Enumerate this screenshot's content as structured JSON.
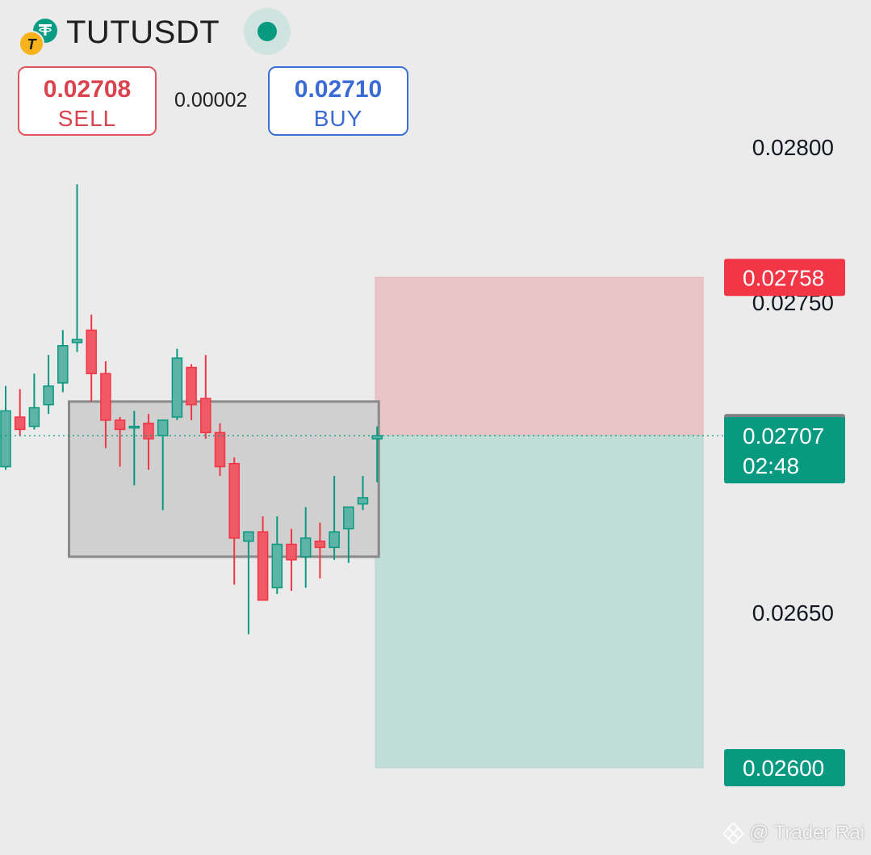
{
  "header": {
    "symbol": "TUTUSDT",
    "base_icon": "tutu-coin-icon",
    "quote_icon": "tether-coin-icon",
    "status_color": "#089981"
  },
  "trade_panel": {
    "sell_price": "0.02708",
    "sell_label": "SELL",
    "spread": "0.00002",
    "buy_price": "0.02710",
    "buy_label": "BUY"
  },
  "watermark": {
    "text": "@ Trader Rai",
    "icon": "binance-diamond-icon"
  },
  "colors": {
    "up": "#089981",
    "up_fill": "#5db3a5",
    "down": "#f23645",
    "down_fill": "#ef5a66",
    "stop_zone": "#e9c4c6",
    "target_zone": "#c1ddd8",
    "range_box_fill": "#d0d0d0",
    "range_box_border": "#8a8a8a",
    "axis_text": "#131722"
  },
  "chart_data": {
    "type": "candlestick",
    "price_axis": {
      "ticks": [
        "0.02800",
        "0.02750",
        "0.02650"
      ],
      "ylim": [
        0.0259,
        0.02835
      ]
    },
    "candles": [
      {
        "open": 0.02697,
        "high": 0.02723,
        "low": 0.02696,
        "close": 0.02715
      },
      {
        "open": 0.02713,
        "high": 0.02722,
        "low": 0.02707,
        "close": 0.02709
      },
      {
        "open": 0.0271,
        "high": 0.02727,
        "low": 0.02709,
        "close": 0.02716
      },
      {
        "open": 0.02717,
        "high": 0.02733,
        "low": 0.02714,
        "close": 0.02723
      },
      {
        "open": 0.02724,
        "high": 0.02741,
        "low": 0.02721,
        "close": 0.02736
      },
      {
        "open": 0.02737,
        "high": 0.02788,
        "low": 0.02734,
        "close": 0.02738
      },
      {
        "open": 0.02741,
        "high": 0.02746,
        "low": 0.02718,
        "close": 0.02727
      },
      {
        "open": 0.02727,
        "high": 0.02731,
        "low": 0.02703,
        "close": 0.02712
      },
      {
        "open": 0.02712,
        "high": 0.02713,
        "low": 0.02697,
        "close": 0.02709
      },
      {
        "open": 0.0271,
        "high": 0.02715,
        "low": 0.02691,
        "close": 0.0271
      },
      {
        "open": 0.02711,
        "high": 0.02714,
        "low": 0.02696,
        "close": 0.02706
      },
      {
        "open": 0.02707,
        "high": 0.02712,
        "low": 0.02683,
        "close": 0.02712
      },
      {
        "open": 0.02713,
        "high": 0.02735,
        "low": 0.02712,
        "close": 0.02732
      },
      {
        "open": 0.02729,
        "high": 0.0273,
        "low": 0.02712,
        "close": 0.02717
      },
      {
        "open": 0.02719,
        "high": 0.02733,
        "low": 0.02706,
        "close": 0.02708
      },
      {
        "open": 0.02708,
        "high": 0.02711,
        "low": 0.02694,
        "close": 0.02697
      },
      {
        "open": 0.02698,
        "high": 0.027,
        "low": 0.02659,
        "close": 0.02674
      },
      {
        "open": 0.02673,
        "high": 0.02676,
        "low": 0.02643,
        "close": 0.02676
      },
      {
        "open": 0.02676,
        "high": 0.02681,
        "low": 0.02654,
        "close": 0.02654
      },
      {
        "open": 0.02658,
        "high": 0.02681,
        "low": 0.02656,
        "close": 0.02672
      },
      {
        "open": 0.02672,
        "high": 0.02677,
        "low": 0.02657,
        "close": 0.02667
      },
      {
        "open": 0.02668,
        "high": 0.02684,
        "low": 0.02658,
        "close": 0.02674
      },
      {
        "open": 0.02673,
        "high": 0.02679,
        "low": 0.02661,
        "close": 0.02671
      },
      {
        "open": 0.02671,
        "high": 0.02694,
        "low": 0.02667,
        "close": 0.02676
      },
      {
        "open": 0.02677,
        "high": 0.02684,
        "low": 0.02666,
        "close": 0.02684
      },
      {
        "open": 0.02685,
        "high": 0.02694,
        "low": 0.02683,
        "close": 0.02687
      },
      {
        "open": 0.02706,
        "high": 0.0271,
        "low": 0.02692,
        "close": 0.02707
      }
    ],
    "range_box": {
      "top_price": 0.02718,
      "bottom_price": 0.02668,
      "start_candle": 5,
      "end_candle": 26
    },
    "position_tool": {
      "entry": 0.02707,
      "stop": 0.02758,
      "target": 0.026,
      "stop_label": "0.02758",
      "target_label": "0.02600"
    },
    "price_labels": [
      {
        "name": "ask-price-label",
        "price": 0.02708,
        "text": "0.02708",
        "countdown": "",
        "color": "#808080"
      },
      {
        "name": "last-price-label",
        "price": 0.02707,
        "text": "0.02707",
        "countdown": "02:48",
        "color": "#089981"
      }
    ]
  }
}
